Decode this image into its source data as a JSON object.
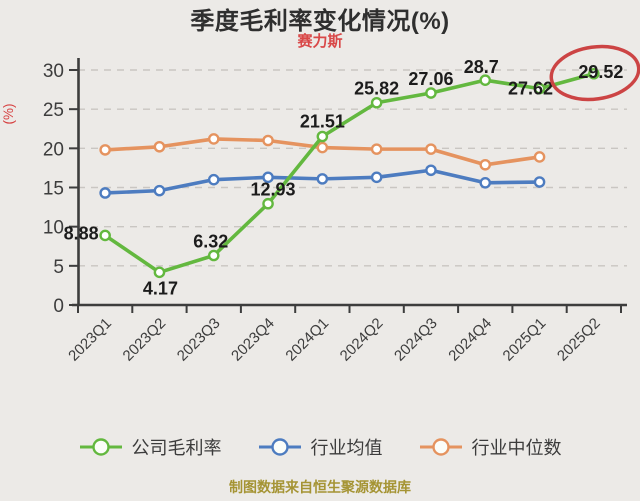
{
  "title": "季度毛利率变化情况(%)",
  "subtitle": "赛力斯",
  "footer": "制图数据来自恒生聚源数据库",
  "colors": {
    "background": "#eceae7",
    "title_text": "#2f2f2f",
    "subtitle_red": "#d94848",
    "axis": "#3d3d3d",
    "gridline": "#c9c6c2",
    "point_label_text": "#1c1c1c",
    "company_green": "#63b83f",
    "industry_avg_blue": "#4d7cc0",
    "industry_median_orange": "#e5935f",
    "highlight_ellipse": "#cc4444",
    "footer_text": "#a59434",
    "y_unit_label_red": "#d64040"
  },
  "annotation": {
    "shape": "ellipse",
    "highlighted_value": "29.52",
    "description": "last company data point circled in red"
  },
  "chart_data": {
    "type": "line",
    "categories": [
      "2023Q1",
      "2023Q2",
      "2023Q3",
      "2023Q4",
      "2024Q1",
      "2024Q2",
      "2024Q3",
      "2024Q4",
      "2025Q1",
      "2025Q2"
    ],
    "series": [
      {
        "name": "公司毛利率",
        "color": "#63b83f",
        "values": [
          8.88,
          4.17,
          6.32,
          12.93,
          21.51,
          25.82,
          27.06,
          28.7,
          27.62,
          29.52
        ],
        "point_labels": [
          "8.88",
          "4.17",
          "6.32",
          "12.93",
          "21.51",
          "25.82",
          "27.06",
          "28.7",
          "27.62",
          "29.52"
        ]
      },
      {
        "name": "行业均值",
        "color": "#4d7cc0",
        "values": [
          14.3,
          14.6,
          16.0,
          16.3,
          16.1,
          16.3,
          17.2,
          15.6,
          15.7,
          null
        ],
        "point_labels": null
      },
      {
        "name": "行业中位数",
        "color": "#e5935f",
        "values": [
          19.8,
          20.2,
          21.2,
          21.0,
          20.1,
          19.9,
          19.9,
          17.9,
          18.9,
          null
        ],
        "point_labels": null
      }
    ],
    "ylabel": "(%)",
    "ylim": [
      0,
      30
    ],
    "y_ticks": [
      0,
      5,
      10,
      15,
      20,
      25,
      30
    ],
    "grid": "horizontal-dashed",
    "legend_position": "bottom"
  }
}
